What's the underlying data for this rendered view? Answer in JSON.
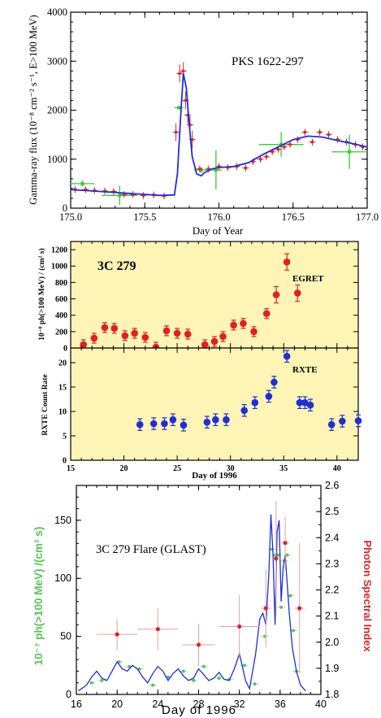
{
  "chart_data": [
    {
      "type": "line",
      "title": "PKS 1622-297",
      "xlabel": "Day of Year",
      "ylabel": "Gamma-ray flux (10⁻⁸ cm⁻² s⁻¹, E>100 MeV)",
      "xlim": [
        175.0,
        177.0
      ],
      "ylim": [
        0,
        4000
      ],
      "xticks": [
        "175.0",
        "175.5",
        "176.0",
        "176.5",
        "177.0"
      ],
      "yticks": [
        "0",
        "1000",
        "2000",
        "3000",
        "4000"
      ],
      "grid": false,
      "series": [
        {
          "marker": "red-points",
          "x": [
            175.03,
            175.1,
            175.16,
            175.23,
            175.29,
            175.36,
            175.42,
            175.49,
            175.56,
            175.63,
            175.71,
            175.735,
            175.76,
            175.775,
            175.79,
            175.805,
            175.82,
            175.87,
            175.93,
            176.0,
            176.06,
            176.12,
            176.18,
            176.23,
            176.28,
            176.32,
            176.36,
            176.4,
            176.44,
            176.48,
            176.53,
            176.58,
            176.63,
            176.68,
            176.74,
            176.8,
            176.86,
            176.92,
            176.97
          ],
          "y": [
            380,
            380,
            360,
            350,
            340,
            280,
            280,
            260,
            270,
            250,
            1550,
            2750,
            2800,
            2200,
            1900,
            1700,
            1400,
            800,
            800,
            850,
            830,
            850,
            820,
            950,
            1000,
            1050,
            1150,
            1200,
            1250,
            1300,
            1400,
            1550,
            1350,
            1550,
            1500,
            1400,
            1350,
            1300,
            1250
          ]
        },
        {
          "marker": "green-points",
          "x": [
            175.08,
            175.33,
            175.73,
            175.88,
            175.98,
            176.42,
            176.88
          ],
          "y": [
            500,
            260,
            2050,
            780,
            780,
            1300,
            1150
          ]
        },
        {
          "marker": "blue-curve",
          "x": [
            175.0,
            175.2,
            175.4,
            175.6,
            175.7,
            175.72,
            175.74,
            175.76,
            175.78,
            175.8,
            175.82,
            175.85,
            175.88,
            175.9,
            175.95,
            176.0,
            176.1,
            176.2,
            176.3,
            176.4,
            176.5,
            176.6,
            176.7,
            176.8,
            176.9,
            177.0
          ],
          "y": [
            380,
            340,
            300,
            260,
            270,
            700,
            1800,
            2750,
            2450,
            1700,
            1050,
            700,
            660,
            720,
            800,
            830,
            850,
            930,
            1100,
            1250,
            1400,
            1470,
            1450,
            1380,
            1320,
            1250
          ]
        }
      ]
    },
    {
      "type": "scatter",
      "title": "3C 279",
      "label": "EGRET",
      "ylabel": "10⁻⁸ ph(>100 MeV) / (cm² s)",
      "xlim": [
        15,
        42
      ],
      "ylim": [
        0,
        1300
      ],
      "yticks": [
        "0",
        "200",
        "400",
        "600",
        "800",
        "1000",
        "1200"
      ],
      "series": [
        {
          "marker": "red-points",
          "x": [
            16.2,
            17.2,
            18.2,
            19.1,
            20.1,
            21,
            22,
            23,
            24,
            25,
            26,
            27.6,
            28.5,
            29.3,
            30.3,
            31.2,
            32.2,
            33.4,
            34.3,
            35.3,
            36.3
          ],
          "y": [
            40,
            120,
            250,
            240,
            150,
            180,
            130,
            10,
            210,
            180,
            170,
            40,
            80,
            140,
            280,
            300,
            200,
            420,
            650,
            1050,
            670
          ]
        }
      ]
    },
    {
      "type": "scatter",
      "label": "RXTE",
      "xlabel": "Day of 1996",
      "ylabel": "RXTE Count Rate",
      "xlim": [
        15,
        42
      ],
      "ylim": [
        0,
        23
      ],
      "xticks": [
        "15",
        "20",
        "25",
        "30",
        "35",
        "40"
      ],
      "yticks": [
        "0",
        "5",
        "10",
        "15",
        "20"
      ],
      "series": [
        {
          "marker": "blue-points",
          "x": [
            21.5,
            22.8,
            23.8,
            24.6,
            25.6,
            27.8,
            28.6,
            29.6,
            31.3,
            32.3,
            33.6,
            34.1,
            35.3,
            36.5,
            37,
            37.5,
            39.5,
            40.5,
            42
          ],
          "y": [
            7.3,
            7.5,
            7.5,
            8.3,
            7.2,
            7.8,
            8.3,
            8.3,
            10.2,
            11.8,
            13.1,
            16,
            21.3,
            11.8,
            11.8,
            11.3,
            7.3,
            8,
            8.1
          ]
        }
      ]
    },
    {
      "type": "line",
      "title": "3C 279   Flare (GLAST)",
      "xlabel": "Day of 1996",
      "ylabel": "10⁻⁷  ph(>100  MeV)  /(cm² s)",
      "y2label": "Photon  Spectral  Index",
      "xlim": [
        16,
        40
      ],
      "ylim": [
        0,
        180
      ],
      "y2lim": [
        1.8,
        2.6
      ],
      "xticks": [
        "16",
        "20",
        "24",
        "28",
        "32",
        "36",
        "40"
      ],
      "yticks": [
        "0",
        "50",
        "100",
        "150"
      ],
      "y2ticks": [
        "1.8",
        "1.9",
        "2.0",
        "2.1",
        "2.2",
        "2.3",
        "2.4",
        "2.5",
        "2.6"
      ],
      "series": [
        {
          "marker": "blue-curve",
          "x": [
            16.2,
            17,
            17.5,
            18,
            18.5,
            19,
            19.5,
            20,
            20.5,
            21,
            21.5,
            22,
            22.5,
            23,
            23.5,
            24,
            24.5,
            25,
            25.5,
            26,
            26.5,
            27,
            27.5,
            28,
            28.5,
            29,
            29.5,
            30,
            30.5,
            31,
            31.5,
            32,
            32.3,
            32.6,
            33,
            33.3,
            33.6,
            34,
            34.3,
            34.6,
            34.9,
            35.1,
            35.3,
            35.5,
            35.7,
            35.9,
            36.1,
            36.3,
            36.5,
            36.7,
            36.9,
            37.2,
            37.6,
            38,
            38.5
          ],
          "y": [
            3,
            8,
            15,
            20,
            14,
            12,
            20,
            28,
            22,
            20,
            25,
            22,
            15,
            10,
            18,
            24,
            20,
            12,
            18,
            22,
            16,
            12,
            14,
            22,
            17,
            12,
            14,
            19,
            13,
            12,
            22,
            35,
            24,
            12,
            5,
            20,
            35,
            65,
            70,
            60,
            105,
            155,
            120,
            60,
            140,
            150,
            80,
            110,
            120,
            95,
            70,
            40,
            20,
            8,
            3
          ]
        },
        {
          "marker": "green-points",
          "x": [
            17.5,
            18.5,
            20.2,
            21.2,
            22.2,
            23.5,
            25,
            26.5,
            27.5,
            28.5,
            30,
            31,
            32.5,
            33.5,
            34.5,
            35.2,
            35.5,
            35.8,
            36.1,
            36.4,
            36.7,
            37,
            37.3,
            37.6
          ],
          "y": [
            10,
            12,
            28,
            24,
            22,
            8,
            15,
            20,
            12,
            24,
            14,
            13,
            25,
            9,
            50,
            125,
            120,
            120,
            75,
            115,
            120,
            85,
            55,
            20
          ]
        },
        {
          "marker": "red-points-right-axis",
          "x": [
            20,
            24,
            28,
            32,
            34.6,
            35.6,
            36.5,
            37.9
          ],
          "y": [
            2.03,
            2.05,
            1.99,
            2.06,
            2.13,
            2.32,
            2.38,
            2.13
          ]
        }
      ]
    }
  ]
}
